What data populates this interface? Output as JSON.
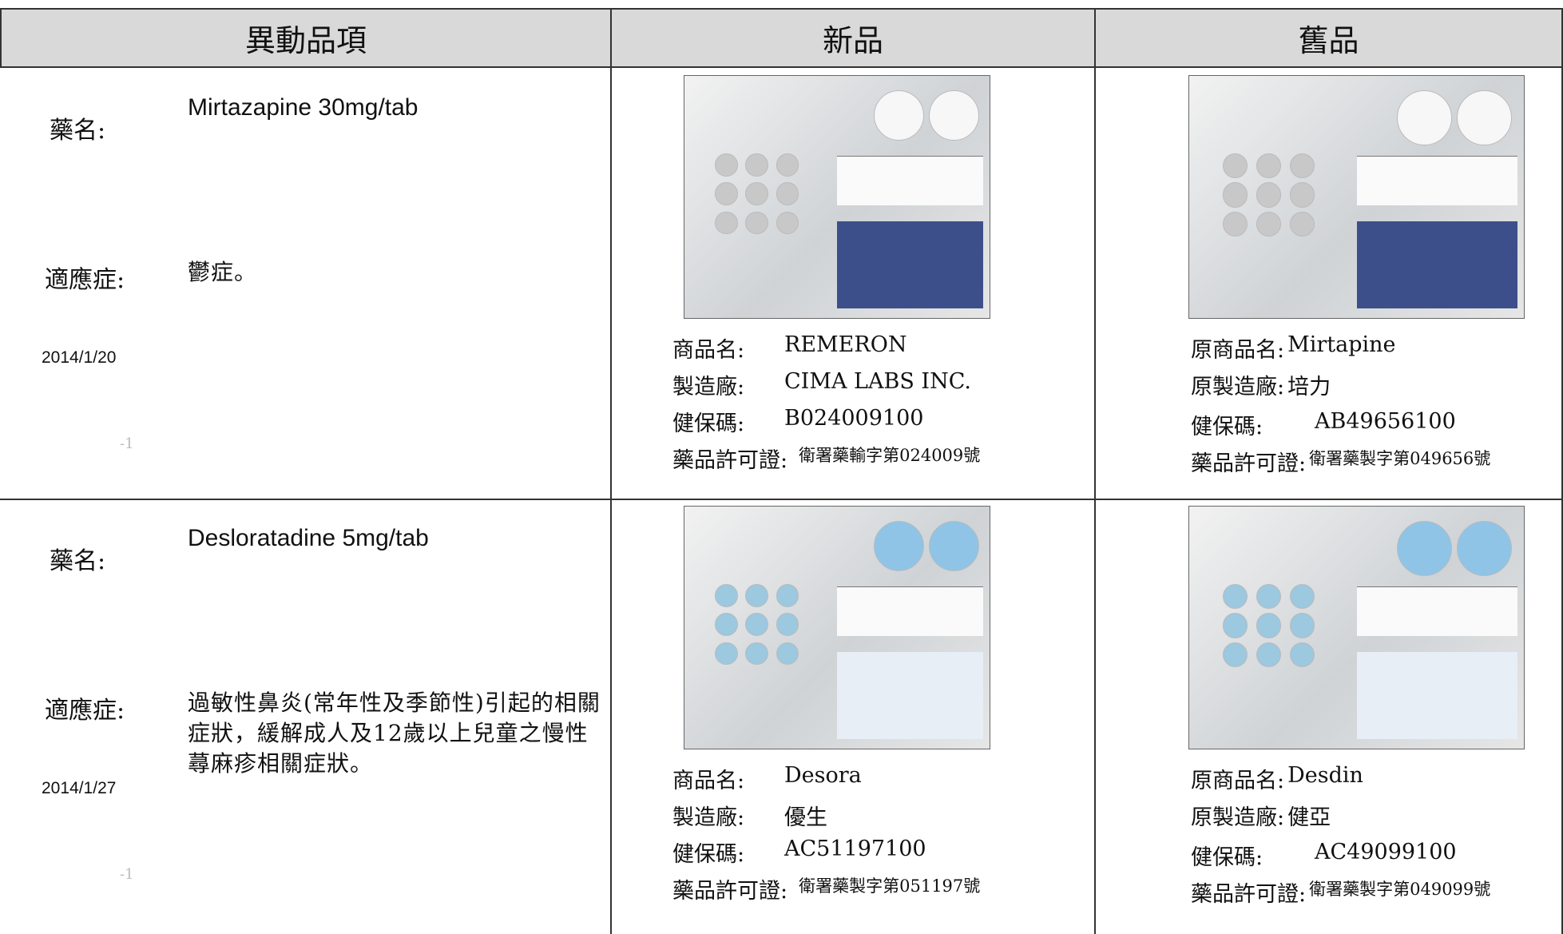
{
  "header": {
    "columns": [
      "異動品項",
      "新品",
      "舊品"
    ]
  },
  "rows": [
    {
      "name_label": "藥名:",
      "name": "Mirtazapine 30mg/tab",
      "indication_label": "適應症:",
      "indication": "鬱症。",
      "date": "2014/1/20",
      "mark": "-1",
      "new": {
        "fields": [
          {
            "label": "商品名:",
            "value": "REMERON"
          },
          {
            "label": "製造廠:",
            "value": "CIMA LABS INC."
          },
          {
            "label": "健保碼:",
            "value": "B024009100"
          },
          {
            "label": "藥品許可證:",
            "value": "衛署藥輸字第024009號"
          }
        ]
      },
      "old": {
        "fields": [
          {
            "label": "原商品名:",
            "value": "Mirtapine"
          },
          {
            "label": "原製造廠:",
            "value": "培力"
          },
          {
            "label": "健保碼:",
            "value": "AB49656100"
          },
          {
            "label": "藥品許可證:",
            "value": "衛署藥製字第049656號"
          }
        ]
      }
    },
    {
      "name_label": "藥名:",
      "name": "Desloratadine 5mg/tab",
      "indication_label": "適應症:",
      "indication": "過敏性鼻炎(常年性及季節性)引起的相關症狀，緩解成人及12歲以上兒童之慢性蕁麻疹相關症狀。",
      "date": "2014/1/27",
      "mark": "-1",
      "new": {
        "fields": [
          {
            "label": "商品名:",
            "value": "Desora"
          },
          {
            "label": "製造廠:",
            "value": "優生"
          },
          {
            "label": "健保碼:",
            "value": "AC51197100"
          },
          {
            "label": "藥品許可證:",
            "value": "衛署藥製字第051197號"
          }
        ]
      },
      "old": {
        "fields": [
          {
            "label": "原商品名:",
            "value": "Desdin"
          },
          {
            "label": "原製造廠:",
            "value": "健亞"
          },
          {
            "label": "健保碼:",
            "value": "AC49099100"
          },
          {
            "label": "藥品許可證:",
            "value": "衛署藥製字第049099號"
          }
        ]
      }
    }
  ]
}
